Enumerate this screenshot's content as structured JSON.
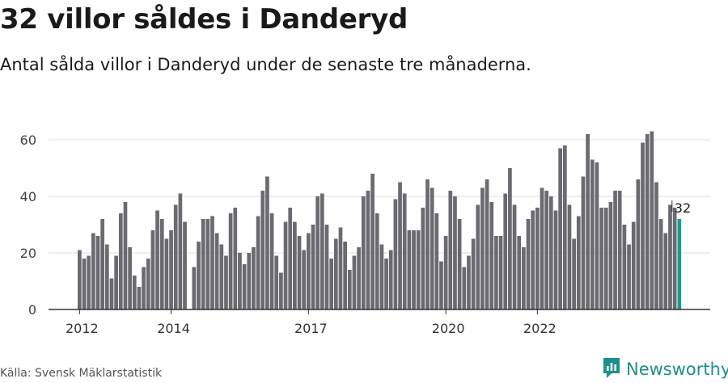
{
  "header": {
    "title": "32 villor såldes i Danderyd",
    "subtitle": "Antal sålda villor i Danderyd under de senaste tre månaderna."
  },
  "footer": {
    "source": "Källa: Svensk Mäklarstatistik",
    "brand": "Newsworthy",
    "brand_icon": "newsworthy-logo-icon"
  },
  "colors": {
    "bar": "#6b6a70",
    "highlight": "#1a9c96",
    "brand": "#1d8f8a"
  },
  "chart_data": {
    "type": "bar",
    "title": "32 villor såldes i Danderyd",
    "subtitle": "Antal sålda villor i Danderyd under de senaste tre månaderna.",
    "xlabel": "",
    "ylabel": "",
    "ylim": [
      0,
      68
    ],
    "yticks": [
      0,
      20,
      40,
      60
    ],
    "grid": true,
    "x_tick_labels": [
      "2012",
      "2014",
      "2017",
      "2020",
      "2022"
    ],
    "x_tick_positions": [
      0,
      20,
      50,
      80,
      100
    ],
    "highlight_label": "32",
    "values": [
      21,
      18,
      19,
      27,
      26,
      32,
      23,
      11,
      19,
      34,
      38,
      22,
      12,
      8,
      15,
      18,
      28,
      35,
      32,
      25,
      28,
      37,
      41,
      31,
      0,
      15,
      24,
      32,
      32,
      33,
      27,
      23,
      19,
      34,
      36,
      20,
      16,
      20,
      22,
      33,
      42,
      47,
      34,
      19,
      13,
      31,
      36,
      31,
      26,
      21,
      27,
      30,
      40,
      41,
      30,
      18,
      25,
      29,
      24,
      14,
      19,
      22,
      40,
      42,
      48,
      34,
      23,
      18,
      21,
      39,
      45,
      41,
      28,
      28,
      28,
      36,
      46,
      43,
      34,
      17,
      26,
      42,
      40,
      32,
      15,
      19,
      25,
      37,
      43,
      46,
      38,
      26,
      26,
      41,
      50,
      37,
      26,
      22,
      32,
      35,
      36,
      43,
      42,
      40,
      35,
      57,
      58,
      37,
      25,
      33,
      47,
      62,
      53,
      52,
      36,
      36,
      38,
      42,
      42,
      30,
      23,
      31,
      46,
      59,
      62,
      63,
      45,
      32,
      27,
      37,
      36,
      32
    ]
  }
}
